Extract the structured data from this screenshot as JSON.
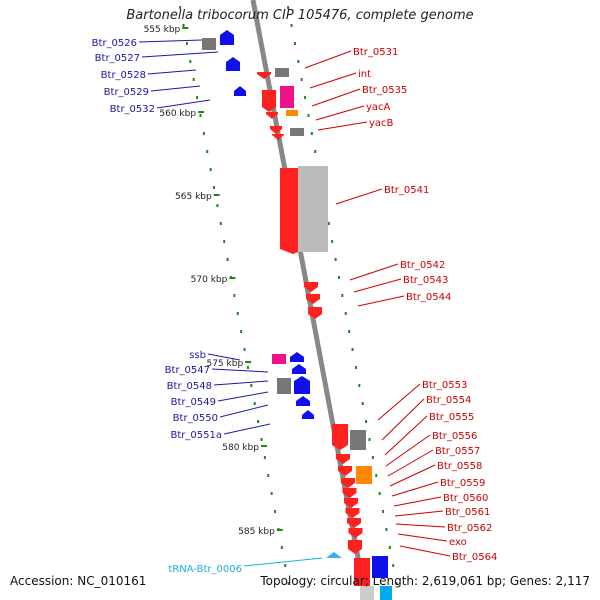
{
  "title": "Bartonella tribocorum CIP 105476, complete genome",
  "footer": {
    "accession": "Accession: NC_010161",
    "summary": "Topology: circular; Length: 2,619,061 bp; Genes: 2,117"
  },
  "colors": {
    "backbone": "#888888",
    "reverse_label": "#1a1aa0",
    "forward_label": "#cc0000",
    "trna_label": "#1ab0e0",
    "tick": "#1a8a1a",
    "red_gene": "#ff2020",
    "blue_gene": "#1010ee",
    "gray_gene": "#777777",
    "magenta_gene": "#ee1188",
    "orange_gene": "#ff8800"
  },
  "scale_labels": [
    {
      "label": "555 kbp",
      "kbp": 555
    },
    {
      "label": "560 kbp",
      "kbp": 560
    },
    {
      "label": "565 kbp",
      "kbp": 565
    },
    {
      "label": "570 kbp",
      "kbp": 570
    },
    {
      "label": "575 kbp",
      "kbp": 575
    },
    {
      "label": "580 kbp",
      "kbp": 580
    },
    {
      "label": "585 kbp",
      "kbp": 585
    }
  ],
  "reverse_genes": [
    "Btr_0526",
    "Btr_0527",
    "Btr_0528",
    "Btr_0529",
    "Btr_0532",
    "ssb",
    "Btr_0547",
    "Btr_0548",
    "Btr_0549",
    "Btr_0550",
    "Btr_0551a"
  ],
  "forward_genes": [
    "Btr_0531",
    "int",
    "Btr_0535",
    "yacA",
    "yacB",
    "Btr_0541",
    "Btr_0542",
    "Btr_0543",
    "Btr_0544",
    "Btr_0553",
    "Btr_0554",
    "Btr_0555",
    "Btr_0556",
    "Btr_0557",
    "Btr_0558",
    "Btr_0559",
    "Btr_0560",
    "Btr_0561",
    "Btr_0562",
    "exo",
    "Btr_0564"
  ],
  "trna_genes": [
    "tRNA-Btr_0006"
  ]
}
